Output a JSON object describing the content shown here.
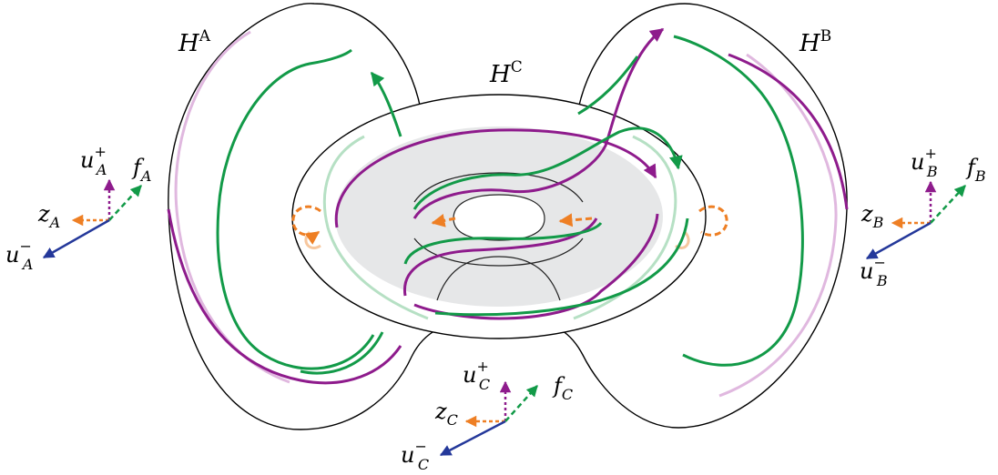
{
  "handles": {
    "A": {
      "base": "H",
      "sup": "A"
    },
    "B": {
      "base": "H",
      "sup": "B"
    },
    "C": {
      "base": "H",
      "sup": "C"
    }
  },
  "frames": {
    "A": {
      "u_plus": {
        "base": "u",
        "sup": "+",
        "sub": "A"
      },
      "u_minus": {
        "base": "u",
        "sup": "−",
        "sub": "A"
      },
      "f": {
        "base": "f",
        "sub": "A"
      },
      "z": {
        "base": "z",
        "sub": "A"
      }
    },
    "B": {
      "u_plus": {
        "base": "u",
        "sup": "+",
        "sub": "B"
      },
      "u_minus": {
        "base": "u",
        "sup": "−",
        "sub": "B"
      },
      "f": {
        "base": "f",
        "sub": "B"
      },
      "z": {
        "base": "z",
        "sub": "B"
      }
    },
    "C": {
      "u_plus": {
        "base": "u",
        "sup": "+",
        "sub": "C"
      },
      "u_minus": {
        "base": "u",
        "sup": "−",
        "sub": "C"
      },
      "f": {
        "base": "f",
        "sub": "C"
      },
      "z": {
        "base": "z",
        "sub": "C"
      }
    }
  },
  "colors": {
    "purple": "#8e1b8c",
    "purple_light": "#e0b8df",
    "green": "#129a48",
    "green_light": "#b6e0c4",
    "orange": "#ee7f24",
    "orange_light": "#f7c79e",
    "blue": "#24389a",
    "gray_fill": "#e6e7e8",
    "outline": "#000000"
  }
}
